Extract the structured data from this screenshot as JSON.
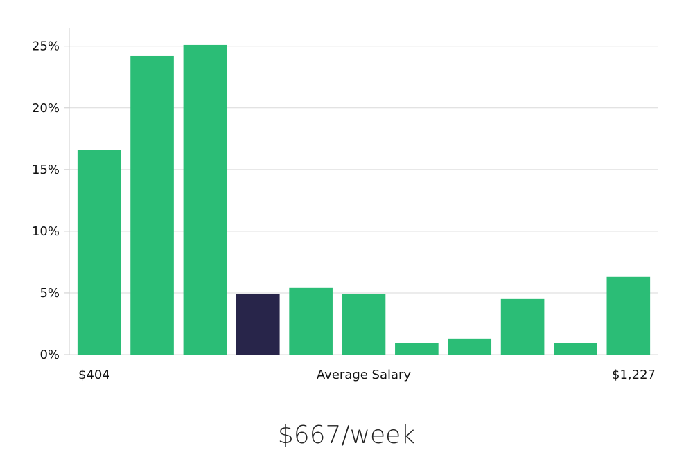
{
  "chart_data": {
    "type": "bar",
    "title": "",
    "xlabel": "Average Salary",
    "ylabel": "",
    "x_range_labels": {
      "min": "$404",
      "max": "$1,227"
    },
    "values": [
      16.6,
      24.2,
      25.1,
      4.9,
      5.4,
      4.9,
      0.9,
      1.3,
      4.5,
      0.9,
      6.3
    ],
    "highlight_index": 3,
    "ylim": [
      0,
      26.5
    ],
    "yticks": [
      0,
      5,
      10,
      15,
      20,
      25
    ],
    "ytick_labels": [
      "0%",
      "5%",
      "10%",
      "15%",
      "20%",
      "25%"
    ],
    "grid": true,
    "colors": {
      "bar": "#2bbd76",
      "highlight": "#28254a",
      "grid": "#d9d9d9",
      "axis": "#cccccc"
    }
  },
  "summary": {
    "salary_text": "$667/week"
  }
}
